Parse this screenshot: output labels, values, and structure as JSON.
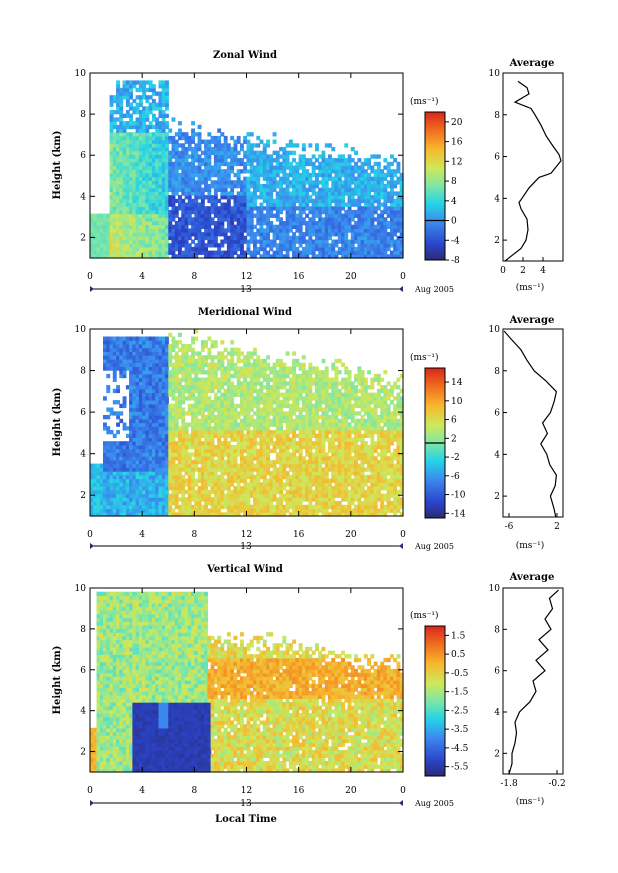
{
  "chart_data": [
    {
      "type": "heatmap",
      "title": "Zonal Wind",
      "ylabel": "Height (km)",
      "xlim": [
        0,
        24
      ],
      "ylim": [
        1,
        10
      ],
      "xticks": [
        "0",
        "4",
        "8",
        "12",
        "16",
        "20",
        "0"
      ],
      "yticks": [
        "2",
        "4",
        "6",
        "8",
        "10"
      ],
      "date_day": "13",
      "date_label": "Aug 2005",
      "colorbar": {
        "unit": "(ms⁻¹)",
        "min": -8,
        "max": 22,
        "zero_line": 0,
        "ticks": [
          "20",
          "16",
          "12",
          "8",
          "4",
          "0",
          "-4",
          "-8"
        ],
        "tick_values": [
          20,
          16,
          12,
          8,
          4,
          0,
          -4,
          -8
        ]
      },
      "profile": {
        "title": "Average",
        "xlabel": "(ms⁻¹)",
        "xlim": [
          0,
          6
        ],
        "xticks": [
          "0",
          "2",
          "4"
        ],
        "yticks": [
          "2",
          "4",
          "6",
          "8",
          "10"
        ],
        "height_km": [
          1.0,
          1.3,
          1.6,
          2.0,
          2.5,
          3.0,
          3.5,
          3.8,
          4.0,
          4.5,
          5.0,
          5.2,
          5.5,
          5.8,
          6.1,
          6.5,
          7.0,
          7.5,
          8.0,
          8.3,
          8.6,
          9.0,
          9.3,
          9.6
        ],
        "values": [
          0.2,
          1.0,
          1.8,
          2.3,
          2.5,
          2.4,
          1.8,
          1.6,
          1.9,
          2.6,
          3.6,
          4.8,
          5.3,
          5.8,
          5.6,
          5.0,
          4.3,
          3.8,
          3.2,
          2.8,
          1.2,
          2.6,
          2.4,
          1.5
        ]
      }
    },
    {
      "type": "heatmap",
      "title": "Meridional Wind",
      "ylabel": "Height (km)",
      "xlim": [
        0,
        24
      ],
      "ylim": [
        1,
        10
      ],
      "xticks": [
        "0",
        "4",
        "8",
        "12",
        "16",
        "20",
        "0"
      ],
      "yticks": [
        "2",
        "4",
        "6",
        "8",
        "10"
      ],
      "date_day": "13",
      "date_label": "Aug 2005",
      "colorbar": {
        "unit": "(ms⁻¹)",
        "min": -15,
        "max": 17,
        "zero_line": 1,
        "ticks": [
          "14",
          "10",
          "6",
          "2",
          "-2",
          "-6",
          "-10",
          "-14"
        ],
        "tick_values": [
          14,
          10,
          6,
          2,
          -2,
          -6,
          -10,
          -14
        ]
      },
      "profile": {
        "title": "Average",
        "xlabel": "(ms⁻¹)",
        "xlim": [
          -7,
          3
        ],
        "xticks": [
          "-6",
          "2"
        ],
        "yticks": [
          "2",
          "4",
          "6",
          "8",
          "10"
        ],
        "height_km": [
          1.0,
          1.4,
          2.0,
          2.5,
          3.0,
          3.5,
          4.0,
          4.5,
          5.0,
          5.5,
          6.0,
          6.5,
          7.0,
          7.5,
          8.0,
          8.5,
          9.0,
          9.5,
          9.9
        ],
        "values": [
          1.8,
          1.5,
          0.9,
          1.7,
          1.9,
          0.8,
          0.3,
          -0.7,
          0.4,
          -0.4,
          0.9,
          1.5,
          1.9,
          0.2,
          -1.8,
          -3.0,
          -4.0,
          -5.6,
          -6.8
        ]
      }
    },
    {
      "type": "heatmap",
      "title": "Vertical Wind",
      "xlabel": "Local Time",
      "ylabel": "Height (km)",
      "xlim": [
        0,
        24
      ],
      "ylim": [
        1,
        10
      ],
      "xticks": [
        "0",
        "4",
        "8",
        "12",
        "16",
        "20",
        "0"
      ],
      "yticks": [
        "2",
        "4",
        "6",
        "8",
        "10"
      ],
      "date_day": "13",
      "date_label": "Aug 2005",
      "colorbar": {
        "unit": "(ms⁻¹)",
        "min": -6.0,
        "max": 2.0,
        "ticks": [
          "1.5",
          "0.5",
          "-0.5",
          "-1.5",
          "-2.5",
          "-3.5",
          "-4.5",
          "-5.5"
        ],
        "tick_values": [
          1.5,
          0.5,
          -0.5,
          -1.5,
          -2.5,
          -3.5,
          -4.5,
          -5.5
        ]
      },
      "profile": {
        "title": "Average",
        "xlabel": "(ms⁻¹)",
        "xlim": [
          -2.0,
          0.0
        ],
        "xticks": [
          "-1.8",
          "-0.2"
        ],
        "yticks": [
          "2",
          "4",
          "6",
          "8",
          "10"
        ],
        "height_km": [
          1.0,
          1.5,
          2.0,
          2.5,
          3.0,
          3.5,
          4.0,
          4.5,
          5.0,
          5.5,
          6.0,
          6.5,
          7.0,
          7.5,
          8.0,
          8.5,
          9.0,
          9.5,
          9.9
        ],
        "values": [
          -1.8,
          -1.7,
          -1.7,
          -1.6,
          -1.55,
          -1.6,
          -1.45,
          -1.1,
          -0.9,
          -1.0,
          -0.6,
          -0.9,
          -0.5,
          -0.8,
          -0.4,
          -0.6,
          -0.35,
          -0.45,
          -0.15
        ]
      }
    }
  ]
}
